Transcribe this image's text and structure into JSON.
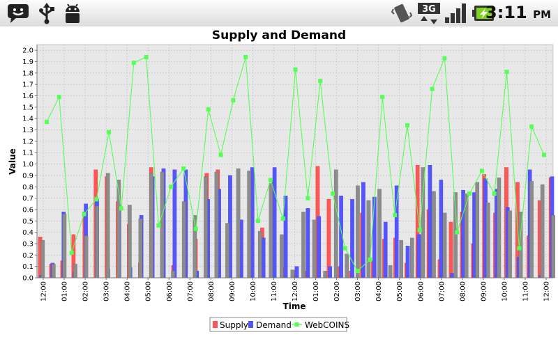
{
  "statusbar": {
    "time": "3:11",
    "ampm": "PM",
    "icons": [
      "chat-notification-icon",
      "usb-icon",
      "android-debug-icon",
      "vibrate-icon",
      "3g-data-icon",
      "signal-icon",
      "battery-charging-icon"
    ],
    "network_label": "3G"
  },
  "colors": {
    "supply": "#ff5555",
    "demand": "#5555ff",
    "third": "#8c8c8c",
    "webcoins": "#55ff55",
    "plot_bg": "#e8e8e8",
    "grid": "#bcbcbc"
  },
  "chart_data": {
    "type": "bar",
    "title": "Supply and Demand",
    "xlabel": "Time",
    "ylabel": "Value",
    "ylim": [
      0,
      2.05
    ],
    "yticks": [
      "0.0",
      "0.1",
      "0.2",
      "0.3",
      "0.4",
      "0.5",
      "0.6",
      "0.7",
      "0.8",
      "0.9",
      "1.0",
      "1.1",
      "1.2",
      "1.3",
      "1.4",
      "1.5",
      "1.6",
      "1.7",
      "1.8",
      "1.9",
      "2.0"
    ],
    "xticks": [
      "12:00",
      "01:00",
      "02:00",
      "03:00",
      "04:00",
      "05:00",
      "06:00",
      "07:00",
      "08:00",
      "09:00",
      "10:00",
      "11:00",
      "12:00",
      "01:00",
      "02:00",
      "03:00",
      "04:00",
      "05:00",
      "06:00",
      "07:00",
      "08:00",
      "09:00",
      "10:00",
      "11:00",
      "12:00"
    ],
    "grid": true,
    "legend_position": "bottom",
    "legend": [
      "Supply",
      "Demand",
      "WebCOINS"
    ],
    "series": [
      {
        "name": "Supply",
        "values": [
          0.36,
          0.12,
          0.15,
          0.38,
          0.58,
          0.95,
          0.89,
          0.67,
          0.47,
          0.13,
          0.97,
          0.42,
          0.11,
          0.64,
          0.34,
          0.92,
          0.95,
          0.39,
          0.11,
          0.49,
          0.44,
          0.86,
          0.1,
          0.06,
          0.06,
          0.98,
          0.69,
          0.1,
          0.06,
          0.57,
          0.15,
          0.34,
          0.35,
          0.13,
          0.99,
          0.6,
          0.16,
          0.49,
          0.58,
          0.3,
          0.91,
          0.57,
          0.97,
          0.84,
          0.37,
          0.68,
          0.88
        ]
      },
      {
        "name": "Demand",
        "values": [
          0.02,
          0.13,
          0.58,
          0.05,
          0.65,
          0.69,
          0.08,
          0.61,
          0.09,
          0.55,
          0.89,
          0.96,
          0.95,
          0.95,
          0.06,
          0.69,
          0.78,
          0.9,
          0.51,
          0.97,
          0.35,
          0.97,
          0.72,
          0.1,
          0.61,
          0.54,
          0.1,
          0.72,
          0.69,
          0.84,
          0.71,
          0.49,
          0.81,
          0.28,
          0.38,
          0.99,
          0.86,
          0.04,
          0.77,
          0.75,
          0.87,
          0.78,
          0.62,
          0.18,
          0.95,
          0.02,
          0.89
        ]
      },
      {
        "name": "",
        "values": [
          0.33,
          0.12,
          0.56,
          0.12,
          0.37,
          0.63,
          0.92,
          0.86,
          0.64,
          0.52,
          0.92,
          0.93,
          0.06,
          0.67,
          0.55,
          0.89,
          0.93,
          0.48,
          0.96,
          0.94,
          0.41,
          0.83,
          0.38,
          0.07,
          0.58,
          0.51,
          0.06,
          0.95,
          0.21,
          0.81,
          0.68,
          0.78,
          0.11,
          0.33,
          0.35,
          0.97,
          0.76,
          0.57,
          0.75,
          0.74,
          0.84,
          0.66,
          0.88,
          0.59,
          0.58,
          0.85,
          0.82,
          0.55
        ]
      },
      {
        "name": "WebCOINS",
        "type": "line",
        "values": [
          1.37,
          1.59,
          0.22,
          0.56,
          0.69,
          1.28,
          0.61,
          1.89,
          1.94,
          0.46,
          0.8,
          0.96,
          0.43,
          1.48,
          1.08,
          1.56,
          1.94,
          0.5,
          0.86,
          0.52,
          1.83,
          0.7,
          1.73,
          0.74,
          0.26,
          0.06,
          0.16,
          1.59,
          0.55,
          1.34,
          0.42,
          1.66,
          1.93,
          0.4,
          0.74,
          0.94,
          0.74,
          1.81,
          0.26,
          1.33,
          1.08
        ]
      }
    ]
  }
}
